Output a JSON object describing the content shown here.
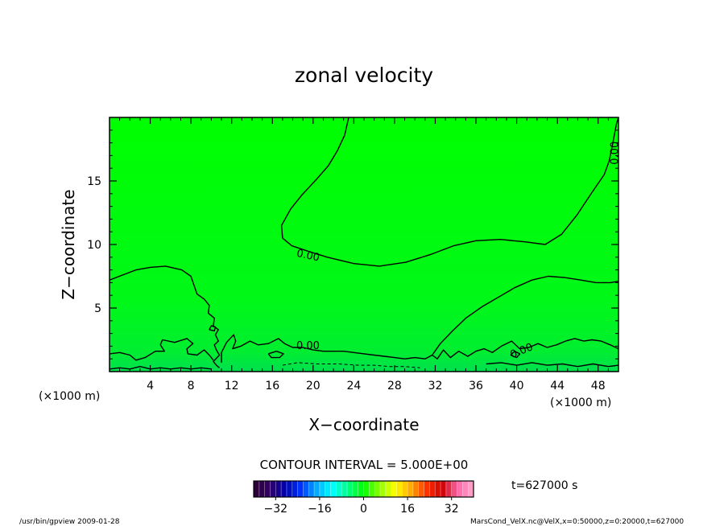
{
  "chart_data": {
    "type": "heatmap",
    "title": "zonal velocity",
    "xlabel": "X−coordinate",
    "ylabel": "Z−coordinate",
    "x_unit_left": "(×1000 m)",
    "x_unit_right": "(×1000 m)",
    "xlim": [
      0,
      50
    ],
    "ylim": [
      0,
      20
    ],
    "x_ticks": [
      4,
      8,
      12,
      16,
      20,
      24,
      28,
      32,
      36,
      40,
      44,
      48
    ],
    "x_tick_labels": [
      "4",
      "8",
      "12",
      "16",
      "20",
      "24",
      "28",
      "32",
      "36",
      "40",
      "44",
      "48"
    ],
    "y_ticks": [
      5,
      10,
      15
    ],
    "y_tick_labels": [
      "5",
      "10",
      "15"
    ],
    "field_value_approx": 0,
    "background_color": "#00ff00",
    "contour_interval_text": "CONTOUR INTERVAL = 5.000E+00",
    "contour_labels": [
      {
        "text": "0.00",
        "x": 49.7,
        "z": 17.2,
        "rotation": -90
      },
      {
        "text": "0.00",
        "x": 19.5,
        "z": 9.1,
        "rotation": 12
      },
      {
        "text": "0.00",
        "x": 19.5,
        "z": 2.0,
        "rotation": 0
      },
      {
        "text": "0.00",
        "x": 40.5,
        "z": 1.6,
        "rotation": -22
      }
    ],
    "contours": [
      {
        "name": "upper-zero-contour",
        "points": [
          [
            23.5,
            20
          ],
          [
            23.1,
            18.6
          ],
          [
            22.4,
            17.4
          ],
          [
            21.5,
            16.2
          ],
          [
            20.3,
            15.1
          ],
          [
            18.9,
            13.9
          ],
          [
            17.8,
            12.8
          ],
          [
            16.9,
            11.5
          ],
          [
            17.0,
            10.5
          ],
          [
            17.9,
            9.9
          ],
          [
            19.4,
            9.5
          ],
          [
            21.4,
            9.0
          ],
          [
            24.0,
            8.5
          ],
          [
            26.5,
            8.3
          ],
          [
            29.1,
            8.6
          ],
          [
            31.5,
            9.2
          ],
          [
            33.8,
            9.9
          ],
          [
            36.0,
            10.3
          ],
          [
            38.4,
            10.4
          ],
          [
            40.9,
            10.2
          ],
          [
            42.8,
            10.0
          ],
          [
            44.4,
            10.8
          ],
          [
            45.9,
            12.3
          ],
          [
            47.4,
            14.1
          ],
          [
            48.6,
            15.5
          ],
          [
            49.1,
            16.6
          ],
          [
            49.4,
            17.8
          ],
          [
            49.8,
            19.5
          ],
          [
            50.0,
            20.0
          ]
        ]
      },
      {
        "name": "left-zero-contour",
        "points": [
          [
            0.0,
            7.2
          ],
          [
            1.3,
            7.6
          ],
          [
            2.6,
            8.0
          ],
          [
            4.0,
            8.2
          ],
          [
            5.5,
            8.3
          ],
          [
            7.1,
            8.0
          ],
          [
            8.0,
            7.5
          ],
          [
            8.3,
            6.8
          ],
          [
            8.6,
            6.1
          ],
          [
            9.3,
            5.7
          ],
          [
            9.8,
            5.2
          ],
          [
            9.7,
            4.6
          ],
          [
            10.3,
            4.2
          ],
          [
            10.2,
            3.6
          ],
          [
            10.7,
            3.3
          ],
          [
            10.4,
            2.9
          ],
          [
            10.7,
            2.4
          ],
          [
            10.3,
            2.1
          ],
          [
            10.5,
            1.7
          ],
          [
            10.8,
            1.3
          ],
          [
            10.2,
            0.8
          ],
          [
            10.5,
            0.5
          ],
          [
            10.8,
            0.3
          ]
        ]
      },
      {
        "name": "right-zero-contour",
        "points": [
          [
            31.7,
            1.3
          ],
          [
            32.5,
            2.2
          ],
          [
            33.7,
            3.2
          ],
          [
            35.0,
            4.2
          ],
          [
            36.6,
            5.1
          ],
          [
            38.3,
            5.9
          ],
          [
            39.8,
            6.6
          ],
          [
            41.5,
            7.2
          ],
          [
            43.1,
            7.5
          ],
          [
            44.7,
            7.4
          ],
          [
            46.3,
            7.2
          ],
          [
            47.8,
            7.0
          ],
          [
            49.2,
            7.0
          ],
          [
            50.0,
            7.1
          ]
        ]
      },
      {
        "name": "lower-zero-contour-left",
        "points": [
          [
            0.0,
            1.4
          ],
          [
            1.0,
            1.5
          ],
          [
            2.0,
            1.3
          ],
          [
            2.6,
            0.9
          ],
          [
            3.5,
            1.1
          ],
          [
            4.5,
            1.6
          ],
          [
            5.4,
            1.6
          ],
          [
            5.0,
            2.1
          ],
          [
            5.2,
            2.5
          ],
          [
            6.4,
            2.3
          ],
          [
            7.6,
            2.6
          ],
          [
            8.2,
            2.2
          ],
          [
            7.6,
            1.8
          ],
          [
            7.7,
            1.4
          ],
          [
            8.6,
            1.3
          ],
          [
            9.3,
            1.7
          ],
          [
            9.8,
            1.3
          ],
          [
            10.2,
            0.9
          ]
        ]
      },
      {
        "name": "lower-zero-contour-mid",
        "points": [
          [
            11.0,
            0.7
          ],
          [
            11.0,
            1.5
          ],
          [
            11.5,
            2.3
          ],
          [
            12.2,
            2.9
          ],
          [
            12.4,
            2.4
          ],
          [
            12.1,
            1.8
          ],
          [
            12.9,
            2.0
          ],
          [
            13.8,
            2.4
          ],
          [
            14.6,
            2.1
          ],
          [
            15.6,
            2.2
          ],
          [
            16.6,
            2.6
          ],
          [
            17.2,
            2.2
          ],
          [
            18.0,
            1.9
          ],
          [
            19.0,
            1.9
          ],
          [
            20.0,
            1.7
          ],
          [
            21.0,
            1.6
          ],
          [
            22.0,
            1.6
          ],
          [
            23.0,
            1.6
          ],
          [
            24.0,
            1.5
          ],
          [
            25.0,
            1.4
          ],
          [
            26.0,
            1.3
          ],
          [
            27.0,
            1.2
          ],
          [
            28.0,
            1.1
          ],
          [
            29.0,
            1.0
          ],
          [
            30.0,
            1.1
          ],
          [
            31.0,
            1.0
          ],
          [
            31.7,
            1.3
          ]
        ]
      },
      {
        "name": "lower-zero-contour-right",
        "points": [
          [
            31.7,
            1.3
          ],
          [
            32.2,
            1.0
          ],
          [
            32.8,
            1.7
          ],
          [
            33.5,
            1.1
          ],
          [
            34.3,
            1.6
          ],
          [
            35.2,
            1.2
          ],
          [
            36.0,
            1.6
          ],
          [
            36.8,
            1.8
          ],
          [
            37.6,
            1.5
          ],
          [
            38.5,
            2.0
          ],
          [
            39.5,
            2.4
          ],
          [
            40.3,
            1.8
          ],
          [
            41.2,
            1.9
          ],
          [
            42.1,
            2.2
          ],
          [
            43.0,
            1.9
          ],
          [
            43.9,
            2.1
          ],
          [
            44.8,
            2.4
          ],
          [
            45.7,
            2.6
          ],
          [
            46.6,
            2.4
          ],
          [
            47.4,
            2.5
          ],
          [
            48.3,
            2.4
          ],
          [
            49.2,
            2.1
          ],
          [
            50.0,
            1.8
          ]
        ]
      },
      {
        "name": "small-loop-16",
        "points": [
          [
            15.6,
            1.4
          ],
          [
            16.4,
            1.6
          ],
          [
            17.1,
            1.4
          ],
          [
            16.7,
            1.1
          ],
          [
            15.9,
            1.1
          ],
          [
            15.6,
            1.4
          ]
        ]
      },
      {
        "name": "small-loop-9",
        "points": [
          [
            9.8,
            3.3
          ],
          [
            10.3,
            3.2
          ],
          [
            10.4,
            3.5
          ],
          [
            10.0,
            3.6
          ],
          [
            9.8,
            3.3
          ]
        ]
      },
      {
        "name": "small-loop-40",
        "points": [
          [
            39.4,
            1.3
          ],
          [
            39.8,
            1.6
          ],
          [
            40.3,
            1.4
          ],
          [
            40.0,
            1.1
          ],
          [
            39.4,
            1.3
          ]
        ]
      },
      {
        "name": "bottom-ripple-right",
        "points": [
          [
            37.0,
            0.6
          ],
          [
            38.5,
            0.7
          ],
          [
            40.0,
            0.5
          ],
          [
            41.5,
            0.7
          ],
          [
            43.0,
            0.5
          ],
          [
            44.5,
            0.6
          ],
          [
            46.0,
            0.4
          ],
          [
            47.5,
            0.6
          ],
          [
            49.0,
            0.4
          ],
          [
            50.0,
            0.5
          ]
        ]
      },
      {
        "name": "bottom-ripple-left",
        "points": [
          [
            0.0,
            0.2
          ],
          [
            1.0,
            0.3
          ],
          [
            2.0,
            0.2
          ],
          [
            3.0,
            0.4
          ],
          [
            4.0,
            0.2
          ],
          [
            5.0,
            0.3
          ],
          [
            6.0,
            0.2
          ],
          [
            7.0,
            0.3
          ],
          [
            8.0,
            0.2
          ],
          [
            9.0,
            0.3
          ],
          [
            10.0,
            0.2
          ]
        ]
      }
    ],
    "dashed_contours": [
      {
        "name": "negative-contour-bottom",
        "points": [
          [
            17.0,
            0.5
          ],
          [
            18.5,
            0.7
          ],
          [
            20.5,
            0.6
          ],
          [
            22.5,
            0.6
          ],
          [
            24.5,
            0.5
          ],
          [
            26.0,
            0.5
          ],
          [
            27.5,
            0.4
          ],
          [
            29.0,
            0.4
          ],
          [
            30.5,
            0.3
          ]
        ]
      }
    ],
    "colorbar": {
      "min": -40,
      "max": 40,
      "step": 2,
      "tick_values": [
        -32,
        -16,
        0,
        16,
        32
      ],
      "tick_labels": [
        "−32",
        "−16",
        "0",
        "16",
        "32"
      ],
      "stops": [
        "#2a0030",
        "#330066",
        "#0000aa",
        "#0033ff",
        "#00aaff",
        "#00ffff",
        "#00ff88",
        "#00ff00",
        "#88ff00",
        "#ffff00",
        "#ffaa00",
        "#ff3300",
        "#cc0000",
        "#ff66aa",
        "#ffaacc"
      ]
    }
  },
  "annotations": {
    "time_label": "t=627000 s",
    "footer_left": "/usr/bin/gpview   2009-01-28",
    "footer_right": "MarsCond_VelX.nc@VelX,x=0:50000,z=0:20000,t=627000"
  }
}
